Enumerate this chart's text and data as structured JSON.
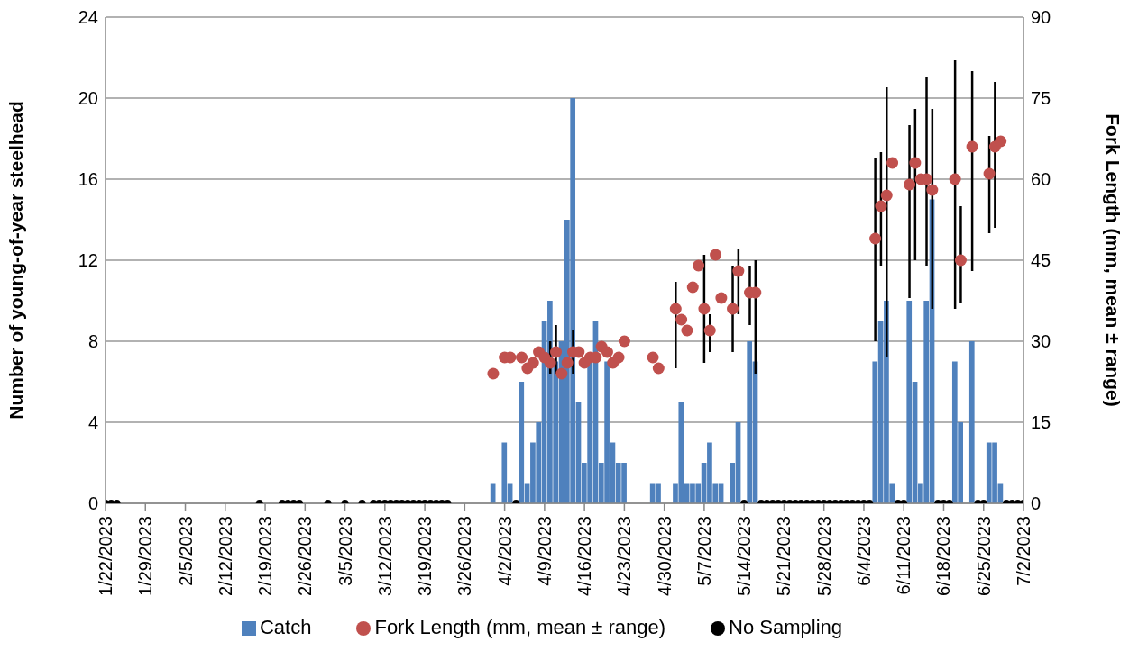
{
  "chart_data": {
    "type": "bar",
    "ylabel": "Number of young-of-year steelhead",
    "y2label": "Fork Length (mm, mean ± range)",
    "xlim": [
      "2023-01-22",
      "2023-07-02"
    ],
    "xticks": [
      {
        "value": "2023-01-22",
        "label": "1/22/2023"
      },
      {
        "value": "2023-01-29",
        "label": "1/29/2023"
      },
      {
        "value": "2023-02-05",
        "label": "2/5/2023"
      },
      {
        "value": "2023-02-12",
        "label": "2/12/2023"
      },
      {
        "value": "2023-02-19",
        "label": "2/19/2023"
      },
      {
        "value": "2023-02-26",
        "label": "2/26/2023"
      },
      {
        "value": "2023-03-05",
        "label": "3/5/2023"
      },
      {
        "value": "2023-03-12",
        "label": "3/12/2023"
      },
      {
        "value": "2023-03-19",
        "label": "3/19/2023"
      },
      {
        "value": "2023-03-26",
        "label": "3/26/2023"
      },
      {
        "value": "2023-04-02",
        "label": "4/2/2023"
      },
      {
        "value": "2023-04-09",
        "label": "4/9/2023"
      },
      {
        "value": "2023-04-16",
        "label": "4/16/2023"
      },
      {
        "value": "2023-04-23",
        "label": "4/23/2023"
      },
      {
        "value": "2023-04-30",
        "label": "4/30/2023"
      },
      {
        "value": "2023-05-07",
        "label": "5/7/2023"
      },
      {
        "value": "2023-05-14",
        "label": "5/14/2023"
      },
      {
        "value": "2023-05-21",
        "label": "5/21/2023"
      },
      {
        "value": "2023-05-28",
        "label": "5/28/2023"
      },
      {
        "value": "2023-06-04",
        "label": "6/4/2023"
      },
      {
        "value": "2023-06-11",
        "label": "6/11/2023"
      },
      {
        "value": "2023-06-18",
        "label": "6/18/2023"
      },
      {
        "value": "2023-06-25",
        "label": "6/25/2023"
      },
      {
        "value": "2023-07-02",
        "label": "7/2/2023"
      }
    ],
    "ylim": [
      0,
      24
    ],
    "yticks": [
      0,
      4,
      8,
      12,
      16,
      20,
      24
    ],
    "y2lim": [
      0,
      90
    ],
    "y2ticks": [
      0,
      15,
      30,
      45,
      60,
      75,
      90
    ],
    "grid": "y",
    "legend": "bottom",
    "marker": "circle",
    "series": [
      {
        "name": "Catch",
        "color": "#4f81bd",
        "x": [
          "2023-03-31",
          "2023-04-02",
          "2023-04-03",
          "2023-04-05",
          "2023-04-06",
          "2023-04-07",
          "2023-04-08",
          "2023-04-09",
          "2023-04-10",
          "2023-04-11",
          "2023-04-12",
          "2023-04-13",
          "2023-04-14",
          "2023-04-15",
          "2023-04-16",
          "2023-04-17",
          "2023-04-18",
          "2023-04-19",
          "2023-04-20",
          "2023-04-21",
          "2023-04-22",
          "2023-04-23",
          "2023-04-28",
          "2023-04-29",
          "2023-05-02",
          "2023-05-03",
          "2023-05-04",
          "2023-05-05",
          "2023-05-06",
          "2023-05-07",
          "2023-05-08",
          "2023-05-09",
          "2023-05-10",
          "2023-05-12",
          "2023-05-13",
          "2023-05-15",
          "2023-05-16",
          "2023-06-06",
          "2023-06-07",
          "2023-06-08",
          "2023-06-09",
          "2023-06-12",
          "2023-06-13",
          "2023-06-14",
          "2023-06-15",
          "2023-06-16",
          "2023-06-20",
          "2023-06-21",
          "2023-06-23",
          "2023-06-26",
          "2023-06-27",
          "2023-06-28"
        ],
        "values": [
          1,
          3,
          1,
          6,
          1,
          3,
          4,
          9,
          10,
          7,
          8,
          14,
          20,
          5,
          2,
          7,
          9,
          2,
          7,
          3,
          2,
          2,
          1,
          1,
          1,
          5,
          1,
          1,
          1,
          2,
          3,
          1,
          1,
          2,
          4,
          8,
          7,
          7,
          9,
          10,
          1,
          10,
          6,
          1,
          10,
          15,
          7,
          4,
          8,
          3,
          3,
          1
        ]
      },
      {
        "type": "scatter",
        "axis": "y2",
        "name": "Fork Length (mm, mean ± range)",
        "color": "#c0504d",
        "x": [
          "2023-03-31",
          "2023-04-02",
          "2023-04-03",
          "2023-04-05",
          "2023-04-06",
          "2023-04-07",
          "2023-04-08",
          "2023-04-09",
          "2023-04-10",
          "2023-04-11",
          "2023-04-12",
          "2023-04-13",
          "2023-04-14",
          "2023-04-15",
          "2023-04-16",
          "2023-04-17",
          "2023-04-18",
          "2023-04-19",
          "2023-04-20",
          "2023-04-21",
          "2023-04-22",
          "2023-04-23",
          "2023-04-28",
          "2023-04-29",
          "2023-05-02",
          "2023-05-03",
          "2023-05-04",
          "2023-05-05",
          "2023-05-06",
          "2023-05-07",
          "2023-05-08",
          "2023-05-09",
          "2023-05-10",
          "2023-05-12",
          "2023-05-13",
          "2023-05-15",
          "2023-05-16",
          "2023-06-06",
          "2023-06-07",
          "2023-06-08",
          "2023-06-09",
          "2023-06-12",
          "2023-06-13",
          "2023-06-14",
          "2023-06-15",
          "2023-06-16",
          "2023-06-20",
          "2023-06-21",
          "2023-06-23",
          "2023-06-26",
          "2023-06-27",
          "2023-06-28"
        ],
        "values": [
          24,
          27,
          27,
          27,
          25,
          26,
          28,
          27,
          26,
          28,
          24,
          26,
          28,
          28,
          26,
          27,
          27,
          29,
          28,
          26,
          27,
          30,
          27,
          25,
          36,
          34,
          32,
          40,
          44,
          36,
          32,
          46,
          38,
          36,
          43,
          39,
          39,
          49,
          55,
          57,
          63,
          59,
          63,
          60,
          60,
          58,
          60,
          45,
          66,
          61,
          66,
          67
        ],
        "errors": [
          null,
          null,
          null,
          null,
          null,
          null,
          null,
          null,
          [
            24,
            30
          ],
          [
            24,
            33
          ],
          null,
          null,
          [
            24,
            32
          ],
          null,
          null,
          null,
          null,
          null,
          null,
          null,
          null,
          null,
          null,
          null,
          [
            25,
            41
          ],
          null,
          null,
          null,
          null,
          [
            26,
            46
          ],
          [
            28,
            35
          ],
          null,
          null,
          [
            28,
            44
          ],
          [
            35,
            47
          ],
          [
            33,
            44
          ],
          [
            24,
            45
          ],
          [
            30,
            64
          ],
          [
            44,
            65
          ],
          [
            27,
            77
          ],
          null,
          [
            38,
            70
          ],
          [
            45,
            73
          ],
          null,
          [
            44,
            79
          ],
          [
            36,
            73
          ],
          [
            36,
            82
          ],
          [
            37,
            55
          ],
          [
            43,
            80
          ],
          [
            50,
            68
          ],
          [
            51,
            78
          ],
          null
        ]
      },
      {
        "type": "scatter",
        "name": "No Sampling",
        "color": "#000000",
        "x": [
          "2023-01-22",
          "2023-01-23",
          "2023-01-24",
          "2023-02-18",
          "2023-02-22",
          "2023-02-23",
          "2023-02-24",
          "2023-02-25",
          "2023-03-02",
          "2023-03-05",
          "2023-03-08",
          "2023-03-10",
          "2023-03-11",
          "2023-03-12",
          "2023-03-13",
          "2023-03-14",
          "2023-03-15",
          "2023-03-16",
          "2023-03-17",
          "2023-03-18",
          "2023-03-19",
          "2023-03-20",
          "2023-03-21",
          "2023-03-22",
          "2023-03-23",
          "2023-04-04",
          "2023-05-14",
          "2023-05-17",
          "2023-05-18",
          "2023-05-19",
          "2023-05-20",
          "2023-05-21",
          "2023-05-22",
          "2023-05-23",
          "2023-05-24",
          "2023-05-25",
          "2023-05-26",
          "2023-05-27",
          "2023-05-28",
          "2023-05-29",
          "2023-05-30",
          "2023-05-31",
          "2023-06-01",
          "2023-06-02",
          "2023-06-03",
          "2023-06-04",
          "2023-06-05",
          "2023-06-10",
          "2023-06-11",
          "2023-06-17",
          "2023-06-18",
          "2023-06-19",
          "2023-06-24",
          "2023-06-25",
          "2023-06-29",
          "2023-06-30",
          "2023-07-01",
          "2023-07-02"
        ],
        "values": [
          0,
          0,
          0,
          0,
          0,
          0,
          0,
          0,
          0,
          0,
          0,
          0,
          0,
          0,
          0,
          0,
          0,
          0,
          0,
          0,
          0,
          0,
          0,
          0,
          0,
          0,
          0,
          0,
          0,
          0,
          0,
          0,
          0,
          0,
          0,
          0,
          0,
          0,
          0,
          0,
          0,
          0,
          0,
          0,
          0,
          0,
          0,
          0,
          0,
          0,
          0,
          0,
          0,
          0,
          0,
          0,
          0,
          0
        ]
      }
    ]
  }
}
